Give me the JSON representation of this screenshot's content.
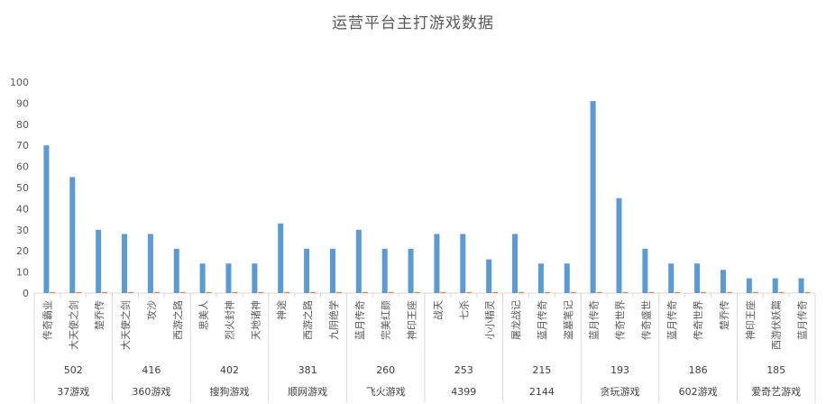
{
  "chart_data": {
    "type": "bar",
    "title": "运营平台主打游戏数据",
    "ylim": [
      0,
      100
    ],
    "yticks": [
      0,
      10,
      20,
      30,
      40,
      50,
      60,
      70,
      80,
      90,
      100
    ],
    "grid": false,
    "legend": "none",
    "colors": {
      "primary": "#5b9bd5",
      "secondary": "#ed7d31"
    },
    "groups": [
      {
        "platform": "37游戏",
        "count": "502",
        "games": [
          {
            "name": "传奇霸业",
            "value": 70,
            "secondary": 0.5
          },
          {
            "name": "大天使之剑",
            "value": 55,
            "secondary": 0.5
          },
          {
            "name": "楚乔传",
            "value": 30,
            "secondary": 0.5
          }
        ]
      },
      {
        "platform": "360游戏",
        "count": "416",
        "games": [
          {
            "name": "大天使之剑",
            "value": 28,
            "secondary": 0.5
          },
          {
            "name": "攻沙",
            "value": 28,
            "secondary": 0.5
          },
          {
            "name": "西游之路",
            "value": 21,
            "secondary": 0.5
          }
        ]
      },
      {
        "platform": "搜狗游戏",
        "count": "402",
        "games": [
          {
            "name": "思美人",
            "value": 14,
            "secondary": 0.5
          },
          {
            "name": "烈火封神",
            "value": 14,
            "secondary": 0.5
          },
          {
            "name": "天地诸神",
            "value": 14,
            "secondary": 0.5
          }
        ]
      },
      {
        "platform": "顺网游戏",
        "count": "381",
        "games": [
          {
            "name": "神途",
            "value": 33,
            "secondary": 0.5
          },
          {
            "name": "西游之路",
            "value": 21,
            "secondary": 0.5
          },
          {
            "name": "九阴绝学",
            "value": 21,
            "secondary": 0.5
          }
        ]
      },
      {
        "platform": "飞火游戏",
        "count": "260",
        "games": [
          {
            "name": "蓝月传奇",
            "value": 30,
            "secondary": 0.5
          },
          {
            "name": "完美红颜",
            "value": 21,
            "secondary": 0.5
          },
          {
            "name": "神印王座",
            "value": 21,
            "secondary": 0.5
          }
        ]
      },
      {
        "platform": "4399",
        "count": "253",
        "games": [
          {
            "name": "战天",
            "value": 28,
            "secondary": 0.5
          },
          {
            "name": "七杀",
            "value": 28,
            "secondary": 0.5
          },
          {
            "name": "小小精灵",
            "value": 16,
            "secondary": 0.5
          }
        ]
      },
      {
        "platform": "2144",
        "count": "215",
        "games": [
          {
            "name": "屠龙战记",
            "value": 28,
            "secondary": 0.5
          },
          {
            "name": "蓝月传奇",
            "value": 14,
            "secondary": 0.5
          },
          {
            "name": "盗墓笔记",
            "value": 14,
            "secondary": 0.5
          }
        ]
      },
      {
        "platform": "贪玩游戏",
        "count": "193",
        "games": [
          {
            "name": "蓝月传奇",
            "value": 91,
            "secondary": 0.5
          },
          {
            "name": "传奇世界",
            "value": 45,
            "secondary": 0.5
          },
          {
            "name": "传奇盛世",
            "value": 21,
            "secondary": 0.5
          }
        ]
      },
      {
        "platform": "602游戏",
        "count": "186",
        "games": [
          {
            "name": "蓝月传奇",
            "value": 14,
            "secondary": 0.5
          },
          {
            "name": "传奇世界",
            "value": 14,
            "secondary": 0.5
          },
          {
            "name": "楚乔传",
            "value": 11,
            "secondary": 0.5
          }
        ]
      },
      {
        "platform": "爱奇艺游戏",
        "count": "185",
        "games": [
          {
            "name": "神印王座",
            "value": 7,
            "secondary": 0.5
          },
          {
            "name": "西游伏妖篇",
            "value": 7,
            "secondary": 0.5
          },
          {
            "name": "蓝月传奇",
            "value": 7,
            "secondary": 0.5
          }
        ]
      }
    ]
  }
}
